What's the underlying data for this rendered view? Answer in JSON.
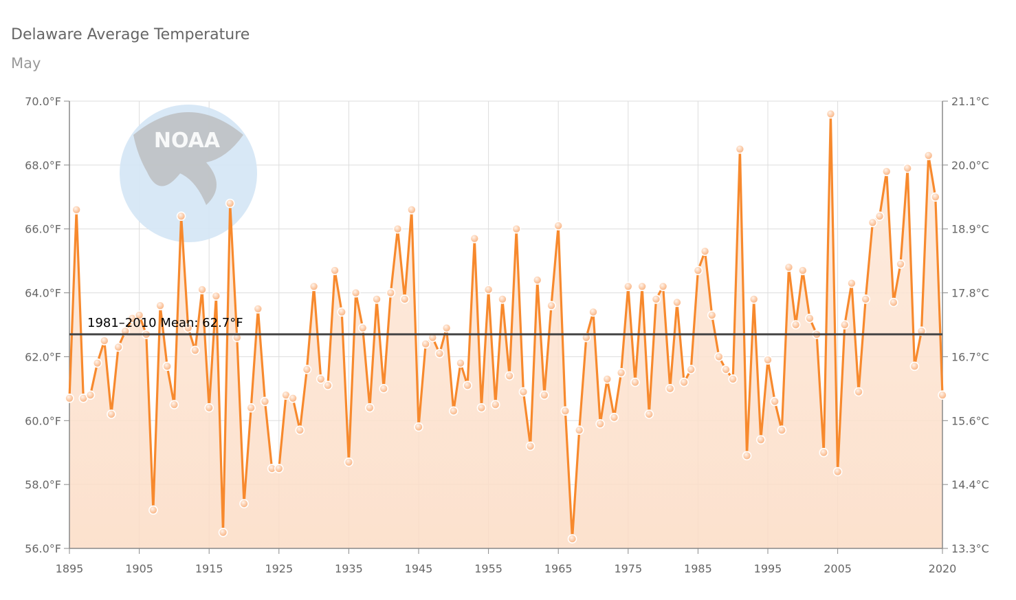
{
  "header": {
    "title": "Delaware Average Temperature",
    "subtitle": "May"
  },
  "logo": {
    "text": "NOAA"
  },
  "colors": {
    "line": "#f7892d",
    "area_top": "#fde9da",
    "area_bottom": "#fcdcc5",
    "marker_fill": "#fdd8bd",
    "mean_line": "#444444",
    "grid": "#dddddd"
  },
  "chart_data": {
    "type": "line",
    "title": "Delaware Average Temperature",
    "subtitle": "May",
    "x_start": 1895,
    "x_end": 2020,
    "xlim": [
      1895,
      2020
    ],
    "ylim_f": [
      56,
      70
    ],
    "ylim_c": [
      13.3,
      21.1
    ],
    "x_ticks": [
      "1895",
      "1905",
      "1915",
      "1925",
      "1935",
      "1945",
      "1955",
      "1965",
      "1975",
      "1985",
      "1995",
      "2005",
      "2020"
    ],
    "y_ticks_left": [
      "56.0°F",
      "58.0°F",
      "60.0°F",
      "62.0°F",
      "64.0°F",
      "66.0°F",
      "68.0°F",
      "70.0°F"
    ],
    "y_ticks_right": [
      "13.3°C",
      "14.4°C",
      "15.6°C",
      "16.7°C",
      "17.8°C",
      "18.9°C",
      "20.0°C",
      "21.1°C"
    ],
    "grid": true,
    "mean": {
      "label": "1981–2010 Mean: 62.7°F",
      "value": 62.7
    },
    "series": [
      {
        "values": [
          60.7,
          66.6,
          60.7,
          60.8,
          61.8,
          62.5,
          60.2,
          62.3,
          62.8,
          63.2,
          63.3,
          62.7,
          57.2,
          63.6,
          61.7,
          60.5,
          66.4,
          62.9,
          62.2,
          64.1,
          60.4,
          63.9,
          56.5,
          66.8,
          62.6,
          57.4,
          60.4,
          63.5,
          60.6,
          58.5,
          58.5,
          60.8,
          60.7,
          59.7,
          61.6,
          64.2,
          61.3,
          61.1,
          64.7,
          63.4,
          58.7,
          64.0,
          62.9,
          60.4,
          63.8,
          61.0,
          64.0,
          66.0,
          63.8,
          66.6,
          59.8,
          62.4,
          62.6,
          62.1,
          62.9,
          60.3,
          61.8,
          61.1,
          65.7,
          60.4,
          64.1,
          60.5,
          63.8,
          61.4,
          66.0,
          60.9,
          59.2,
          64.4,
          60.8,
          63.6,
          66.1,
          60.3,
          56.3,
          59.7,
          62.6,
          63.4,
          59.9,
          61.3,
          60.1,
          61.5,
          64.2,
          61.2,
          64.2,
          60.2,
          63.8,
          64.2,
          61.0,
          63.7,
          61.2,
          61.6,
          64.7,
          65.3,
          63.3,
          62.0,
          61.6,
          61.3,
          68.5,
          58.9,
          63.8,
          59.4,
          61.9,
          60.6,
          59.7,
          64.8,
          63.0,
          64.7,
          63.2,
          62.7,
          59.0,
          69.6,
          58.4,
          63.0,
          64.3,
          60.9,
          63.8,
          66.2,
          66.4,
          67.8,
          63.7,
          64.9,
          67.9,
          61.7,
          62.8,
          68.3,
          67.0,
          60.8
        ]
      }
    ]
  }
}
